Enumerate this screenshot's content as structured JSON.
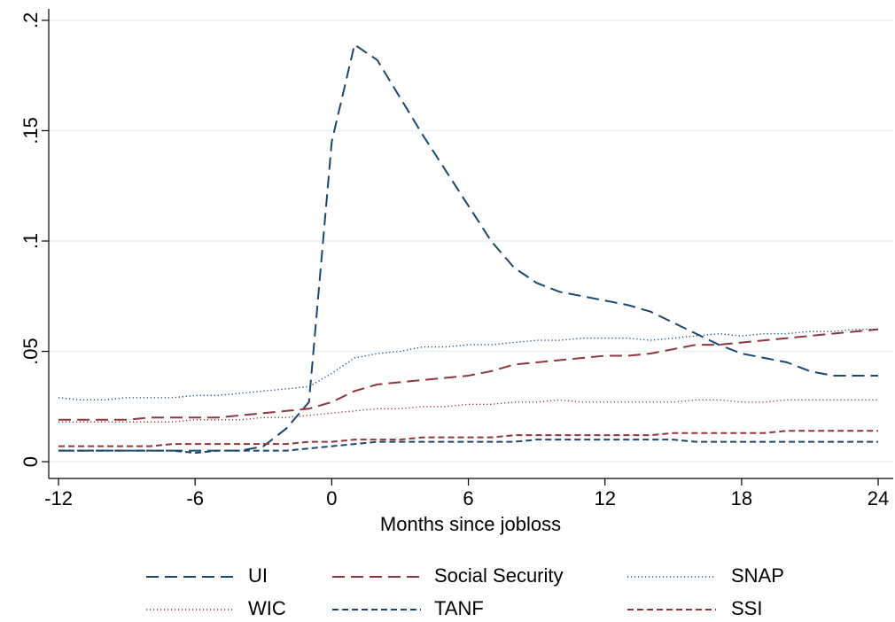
{
  "chart_data": {
    "type": "line",
    "xlabel": "Months since jobloss",
    "x": [
      -12,
      -11,
      -10,
      -9,
      -8,
      -7,
      -6,
      -5,
      -4,
      -3,
      -2,
      -1,
      0,
      1,
      2,
      3,
      4,
      5,
      6,
      7,
      8,
      9,
      10,
      11,
      12,
      13,
      14,
      15,
      16,
      17,
      18,
      19,
      20,
      21,
      22,
      23,
      24
    ],
    "xlim": [
      -12.43,
      24.66
    ],
    "xticks": [
      -12,
      -6,
      0,
      6,
      12,
      18,
      24
    ],
    "ylim": [
      -0.0076,
      0.2052
    ],
    "yticks": [
      0,
      {
        "value": 0.05,
        "label": ".05"
      },
      {
        "value": 0.1,
        "label": ".1"
      },
      {
        "value": 0.15,
        "label": ".15"
      },
      {
        "value": 0.2,
        "label": ".2"
      }
    ],
    "grid": true,
    "series": [
      {
        "name": "UI",
        "color": "#1a476f",
        "style": "longdash",
        "values": [
          0.005,
          0.005,
          0.005,
          0.005,
          0.005,
          0.005,
          0.005,
          0.005,
          0.005,
          0.007,
          0.015,
          0.027,
          0.145,
          0.189,
          0.182,
          0.165,
          0.148,
          0.132,
          0.116,
          0.1,
          0.088,
          0.081,
          0.077,
          0.075,
          0.073,
          0.071,
          0.068,
          0.063,
          0.058,
          0.053,
          0.049,
          0.047,
          0.045,
          0.041,
          0.039,
          0.039,
          0.039
        ]
      },
      {
        "name": "Social Security",
        "color": "#90353b",
        "style": "longdash",
        "values": [
          0.019,
          0.019,
          0.019,
          0.019,
          0.02,
          0.02,
          0.02,
          0.02,
          0.021,
          0.022,
          0.023,
          0.024,
          0.027,
          0.032,
          0.035,
          0.036,
          0.037,
          0.038,
          0.039,
          0.041,
          0.044,
          0.045,
          0.046,
          0.047,
          0.048,
          0.048,
          0.049,
          0.051,
          0.053,
          0.053,
          0.054,
          0.055,
          0.056,
          0.057,
          0.058,
          0.059,
          0.06
        ]
      },
      {
        "name": "SNAP",
        "color": "#1a476f",
        "style": "dot",
        "values": [
          0.029,
          0.028,
          0.028,
          0.029,
          0.029,
          0.029,
          0.03,
          0.03,
          0.031,
          0.032,
          0.033,
          0.034,
          0.04,
          0.047,
          0.049,
          0.05,
          0.052,
          0.052,
          0.053,
          0.053,
          0.054,
          0.055,
          0.055,
          0.056,
          0.056,
          0.056,
          0.055,
          0.056,
          0.057,
          0.058,
          0.057,
          0.058,
          0.058,
          0.059,
          0.059,
          0.06,
          0.06
        ]
      },
      {
        "name": "WIC",
        "color": "#90353b",
        "style": "dot",
        "values": [
          0.018,
          0.018,
          0.018,
          0.018,
          0.018,
          0.018,
          0.019,
          0.019,
          0.019,
          0.02,
          0.02,
          0.021,
          0.022,
          0.023,
          0.024,
          0.024,
          0.025,
          0.025,
          0.026,
          0.026,
          0.027,
          0.027,
          0.028,
          0.027,
          0.027,
          0.027,
          0.027,
          0.027,
          0.028,
          0.028,
          0.027,
          0.027,
          0.028,
          0.028,
          0.028,
          0.028,
          0.028
        ]
      },
      {
        "name": "TANF",
        "color": "#1a476f",
        "style": "dash",
        "values": [
          0.005,
          0.005,
          0.005,
          0.005,
          0.005,
          0.005,
          0.004,
          0.005,
          0.005,
          0.005,
          0.005,
          0.006,
          0.007,
          0.008,
          0.009,
          0.009,
          0.009,
          0.009,
          0.009,
          0.009,
          0.009,
          0.01,
          0.01,
          0.01,
          0.01,
          0.01,
          0.01,
          0.01,
          0.009,
          0.009,
          0.009,
          0.009,
          0.009,
          0.009,
          0.009,
          0.009,
          0.009
        ]
      },
      {
        "name": "SSI",
        "color": "#90353b",
        "style": "dash",
        "values": [
          0.007,
          0.007,
          0.007,
          0.007,
          0.007,
          0.008,
          0.008,
          0.008,
          0.008,
          0.008,
          0.008,
          0.009,
          0.009,
          0.01,
          0.01,
          0.01,
          0.011,
          0.011,
          0.011,
          0.011,
          0.012,
          0.012,
          0.012,
          0.012,
          0.012,
          0.012,
          0.012,
          0.013,
          0.013,
          0.013,
          0.013,
          0.013,
          0.014,
          0.014,
          0.014,
          0.014,
          0.014
        ]
      }
    ]
  }
}
